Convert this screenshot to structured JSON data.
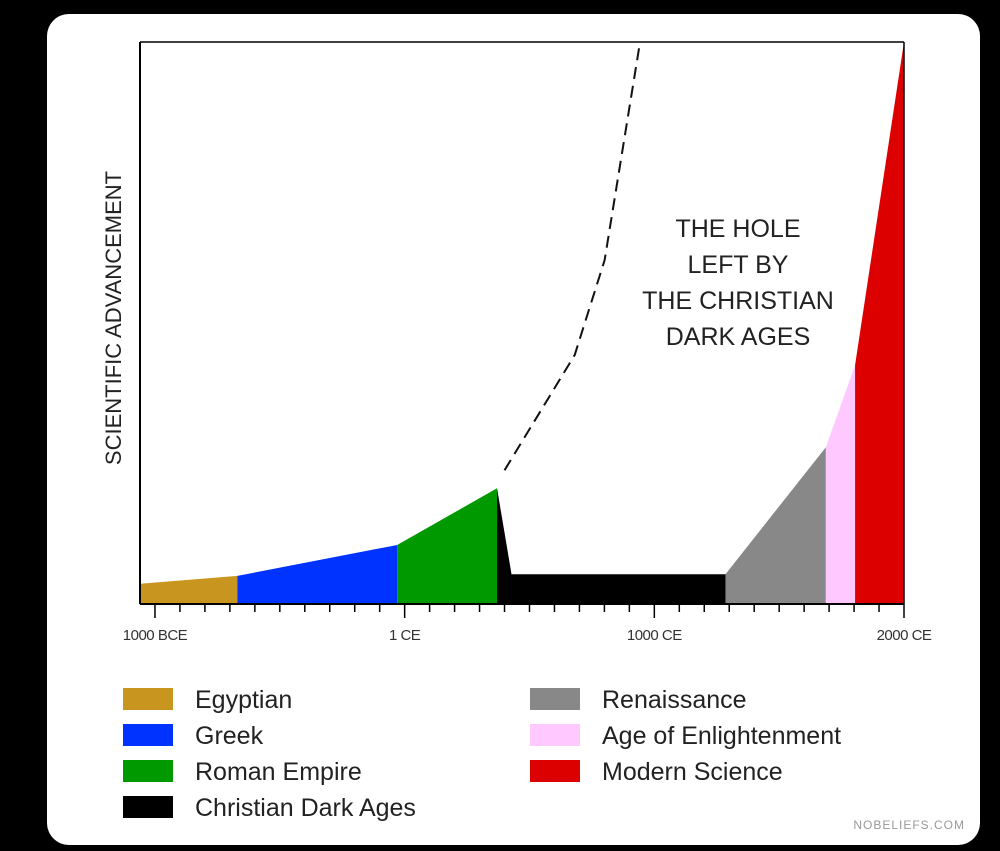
{
  "chart_data": {
    "type": "area",
    "title": "",
    "xlabel": "",
    "ylabel": "SCIENTIFIC ADVANCEMENT",
    "xlim": [
      -1060,
      2000
    ],
    "ylim": [
      0,
      100
    ],
    "grid": false,
    "x_ticks": [
      {
        "value": -1000,
        "label": "1000 BCE"
      },
      {
        "value": 0,
        "label": "1 CE"
      },
      {
        "value": 1000,
        "label": "1000 CE"
      },
      {
        "value": 2000,
        "label": "2000 CE"
      }
    ],
    "series": [
      {
        "name": "Egyptian",
        "color": "#c8961e",
        "points": [
          [
            -1060,
            3.6
          ],
          [
            -670,
            5.0
          ]
        ]
      },
      {
        "name": "Greek",
        "color": "#0033ff",
        "points": [
          [
            -670,
            5.0
          ],
          [
            -30,
            10.5
          ]
        ]
      },
      {
        "name": "Roman Empire",
        "color": "#009900",
        "points": [
          [
            -30,
            10.5
          ],
          [
            370,
            20.6
          ]
        ]
      },
      {
        "name": "Christian Dark Ages",
        "color": "#000000",
        "points": [
          [
            370,
            20.6
          ],
          [
            428,
            5.3
          ],
          [
            1285,
            5.3
          ]
        ]
      },
      {
        "name": "Renaissance",
        "color": "#888888",
        "points": [
          [
            1285,
            5.3
          ],
          [
            1687,
            27.9
          ]
        ]
      },
      {
        "name": "Age of Enlightenment",
        "color": "#ffc8ff",
        "points": [
          [
            1687,
            27.9
          ],
          [
            1804,
            42.5
          ]
        ]
      },
      {
        "name": "Modern Science",
        "color": "#dd0000",
        "points": [
          [
            1804,
            42.5
          ],
          [
            2000,
            100
          ]
        ]
      }
    ],
    "dashed_line": {
      "points": [
        [
          400,
          23.8
        ],
        [
          681,
          44.3
        ],
        [
          801,
          61.2
        ],
        [
          941,
          99.5
        ]
      ]
    },
    "annotation": [
      "THE HOLE",
      "LEFT BY",
      "THE CHRISTIAN",
      "DARK AGES"
    ],
    "legend_position": "bottom"
  },
  "watermark": "NOBELIEFS.COM"
}
